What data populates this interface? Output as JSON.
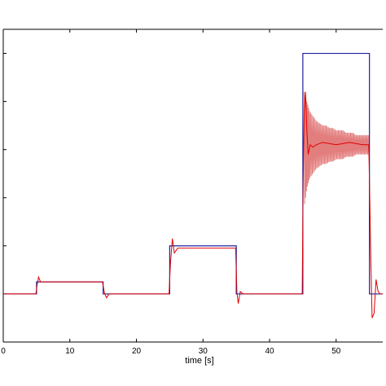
{
  "chart_data": {
    "type": "line",
    "xlabel": "time [s]",
    "ylabel": "",
    "xlim": [
      0,
      57
    ],
    "ylim": [
      -1,
      5.5
    ],
    "x_ticks": [
      0,
      10,
      20,
      30,
      40,
      50
    ],
    "x_tick_labels": [
      "0",
      "10",
      "20",
      "30",
      "40",
      "50"
    ],
    "y_ticks": [
      -1,
      0,
      1,
      2,
      3,
      4,
      5
    ],
    "y_tick_labels": [
      "",
      "",
      "",
      "",
      "",
      "",
      ""
    ],
    "grid": false,
    "legend": "none",
    "series": [
      {
        "color": "#1f1fa0",
        "style": "reference",
        "x": [
          0,
          5,
          5,
          15,
          15,
          25,
          25,
          35,
          35,
          45,
          45,
          55,
          55,
          57
        ],
        "y": [
          0,
          0,
          0.25,
          0.25,
          0,
          0,
          1,
          1,
          0,
          0,
          5,
          5,
          0,
          0
        ]
      },
      {
        "color": "#e00000",
        "style": "response",
        "x": [
          0,
          4.9,
          5.1,
          5.3,
          5.6,
          6.0,
          14.9,
          15.2,
          15.5,
          15.9,
          24.9,
          25.1,
          25.4,
          25.7,
          26.2,
          34.9,
          35.1,
          35.3,
          35.6,
          36.0,
          44.9,
          45.05,
          45.2,
          45.4,
          45.6,
          45.8,
          46.1,
          46.5,
          47.0,
          48.0,
          50.0,
          52.0,
          54.0,
          54.9,
          55.05,
          55.2,
          55.4,
          55.7,
          56.0,
          56.3,
          56.6,
          57.0
        ],
        "y": [
          0,
          0,
          0.2,
          0.35,
          0.25,
          0.25,
          0.25,
          0.02,
          -0.08,
          0,
          0,
          0.6,
          1.15,
          0.85,
          0.95,
          0.95,
          0.02,
          -0.2,
          0.05,
          0,
          0,
          2.3,
          3.8,
          4.2,
          3.4,
          2.9,
          3.1,
          3.05,
          3.1,
          3.15,
          3.1,
          3.15,
          3.1,
          3.1,
          2.0,
          0.8,
          -0.5,
          -0.4,
          0.3,
          0.05,
          0.0,
          0.0
        ]
      },
      {
        "color": "#e07070",
        "style": "oscillation-envelope",
        "x": [
          45.2,
          45.6,
          46.0,
          46.5,
          47.0,
          47.5,
          48.0,
          48.5,
          49.0,
          49.5,
          50.0,
          50.5,
          51.0,
          51.5,
          52.0,
          52.5,
          53.0,
          53.5,
          54.0,
          54.5,
          55.0
        ],
        "y_high": [
          4.2,
          4.0,
          3.8,
          3.7,
          3.6,
          3.55,
          3.5,
          3.5,
          3.45,
          3.45,
          3.4,
          3.4,
          3.4,
          3.35,
          3.35,
          3.35,
          3.3,
          3.3,
          3.3,
          3.3,
          3.3
        ],
        "y_low": [
          1.8,
          2.2,
          2.4,
          2.5,
          2.6,
          2.65,
          2.7,
          2.7,
          2.75,
          2.75,
          2.8,
          2.8,
          2.8,
          2.85,
          2.85,
          2.85,
          2.9,
          2.9,
          2.9,
          2.9,
          2.9
        ]
      }
    ]
  }
}
